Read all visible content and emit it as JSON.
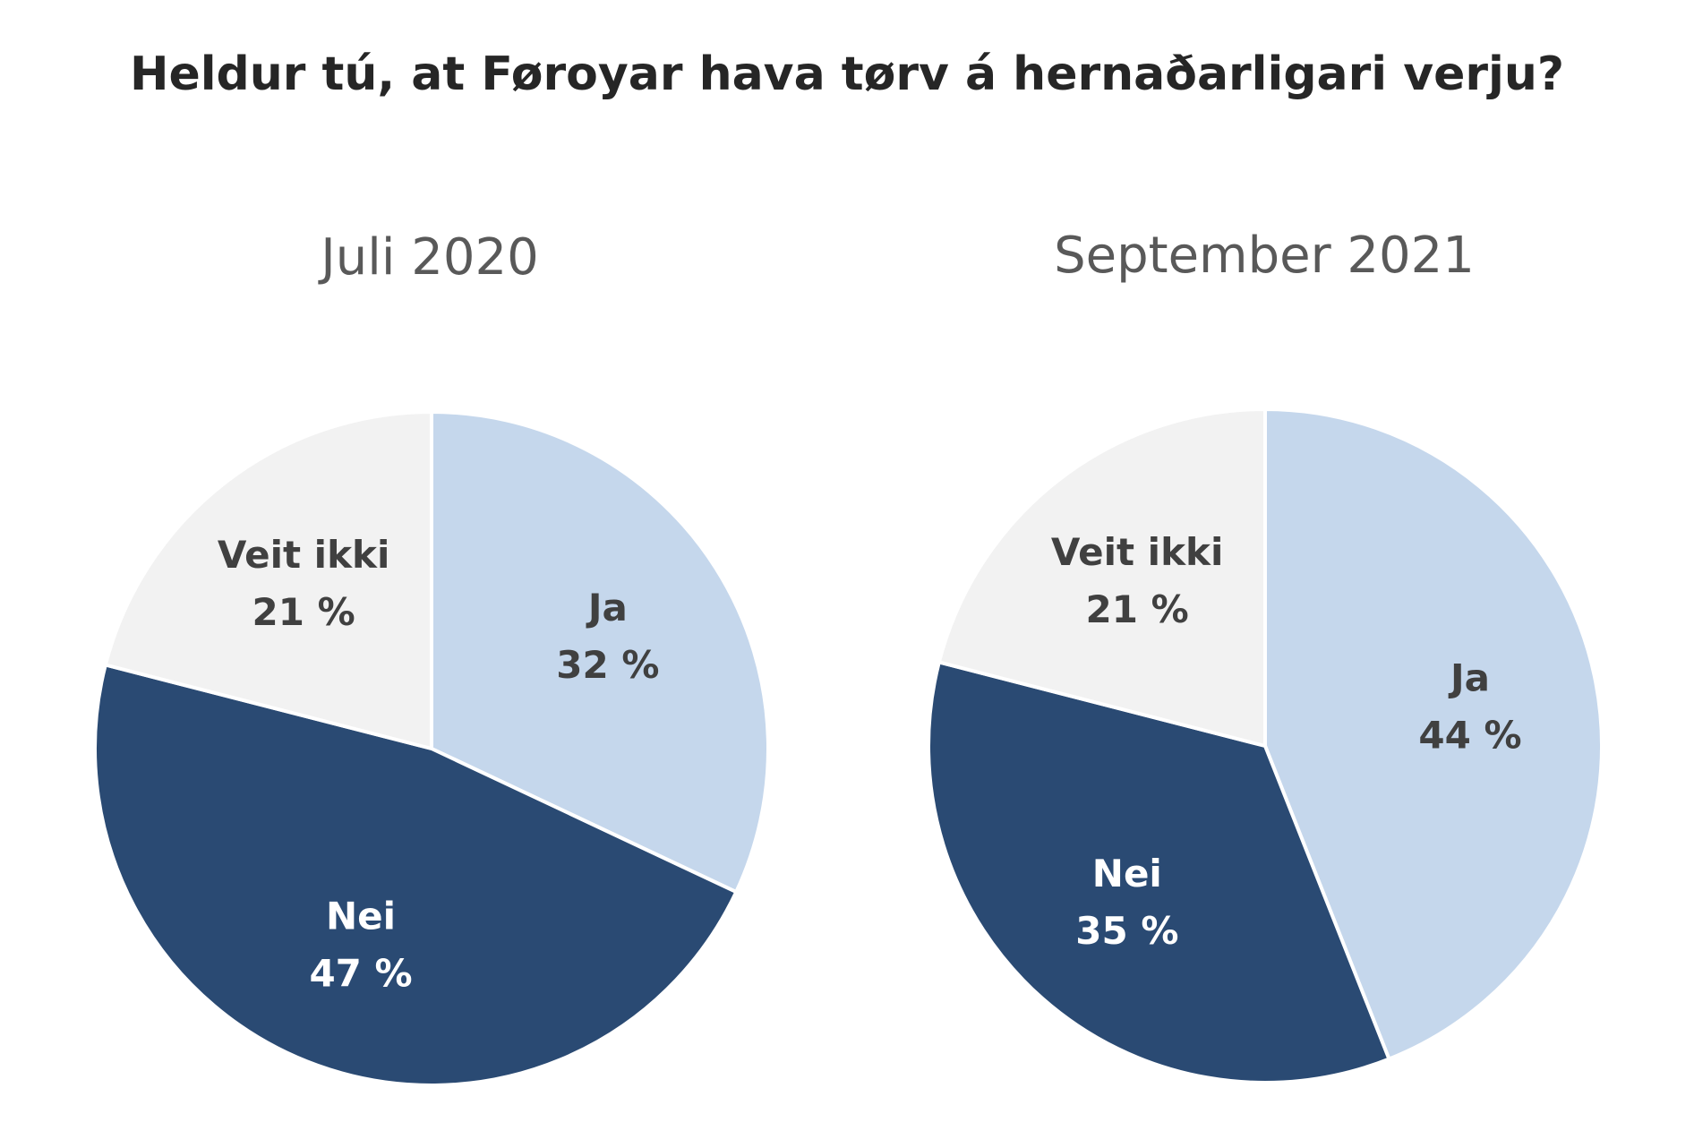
{
  "chart_data": {
    "title": "Heldur tú, at Føroyar hava tørv á hernaðarligari verju?",
    "charts": [
      {
        "type": "pie",
        "title": "Juli 2020",
        "slices": [
          {
            "label": "Ja",
            "value": 32,
            "value_text": "32 %",
            "color": "#C5D7EC",
            "text_color": "#404040"
          },
          {
            "label": "Nei",
            "value": 47,
            "value_text": "47 %",
            "color": "#2A4A73",
            "text_color": "#FFFFFF"
          },
          {
            "label": "Veit ikki",
            "value": 21,
            "value_text": "21 %",
            "color": "#F2F2F2",
            "text_color": "#404040"
          }
        ]
      },
      {
        "type": "pie",
        "title": "September 2021",
        "slices": [
          {
            "label": "Ja",
            "value": 44,
            "value_text": "44 %",
            "color": "#C5D7EC",
            "text_color": "#404040"
          },
          {
            "label": "Nei",
            "value": 35,
            "value_text": "35 %",
            "color": "#2A4A73",
            "text_color": "#FFFFFF"
          },
          {
            "label": "Veit ikki",
            "value": 21,
            "value_text": "21 %",
            "color": "#F2F2F2",
            "text_color": "#404040"
          }
        ]
      }
    ]
  }
}
